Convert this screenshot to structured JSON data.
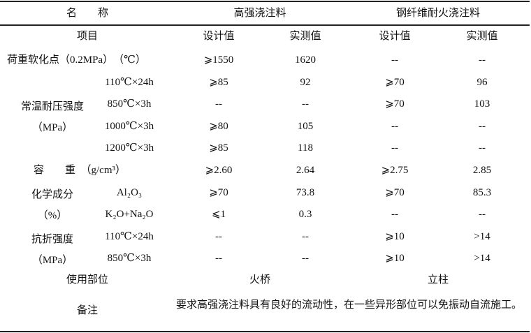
{
  "header": {
    "name": "名　　称",
    "groups": [
      "高强浇注料",
      "钢纤维耐火浇注料"
    ]
  },
  "subheader": {
    "item": "项目",
    "columns": [
      "设计值",
      "实测值",
      "设计值",
      "实测值"
    ]
  },
  "sections": [
    {
      "label": [
        "荷重软化点（0.2MPa）　（℃）"
      ],
      "rows": [
        {
          "cells": [
            "⩾1550",
            "1620",
            "--",
            "--"
          ]
        }
      ]
    },
    {
      "label": [
        "常温耐压强度",
        "（MPa）"
      ],
      "rows": [
        {
          "condition": "110℃×24h",
          "cells": [
            "⩾85",
            "92",
            "⩾70",
            "96"
          ]
        },
        {
          "condition": "850℃×3h",
          "cells": [
            "--",
            "--",
            "⩾70",
            "103"
          ]
        },
        {
          "condition": "1000℃×3h",
          "cells": [
            "⩾80",
            "105",
            "--",
            "--"
          ]
        },
        {
          "condition": "1200℃×3h",
          "cells": [
            "⩾85",
            "118",
            "--",
            "--"
          ]
        }
      ]
    },
    {
      "label": [
        "容　　重　（g/cm³）"
      ],
      "rows": [
        {
          "cells": [
            "⩾2.60",
            "2.64",
            "⩾2.75",
            "2.85"
          ]
        }
      ]
    },
    {
      "label": [
        "化学成分",
        "（%）"
      ],
      "rows": [
        {
          "condition": "Al₂O₃",
          "cells": [
            "⩾70",
            "73.8",
            "⩾70",
            "85.3"
          ]
        },
        {
          "condition": "K₂O+Na₂O",
          "cells": [
            "⩽1",
            "0.3",
            "--",
            "--"
          ]
        }
      ]
    },
    {
      "label": [
        "抗折强度",
        "（MPa）"
      ],
      "rows": [
        {
          "condition": "110℃×24h",
          "cells": [
            "--",
            "--",
            "⩾10",
            ">14"
          ]
        },
        {
          "condition": "850℃×3h",
          "cells": [
            "--",
            "--",
            "⩾10",
            ">14"
          ]
        }
      ]
    }
  ],
  "usage": {
    "label": "使用部位",
    "cells": [
      "火桥",
      "立柱"
    ]
  },
  "remarks": {
    "label": "备注",
    "text": "要求高强浇注料具有良好的流动性，在一些异形部位可以免振动自流施工。"
  }
}
